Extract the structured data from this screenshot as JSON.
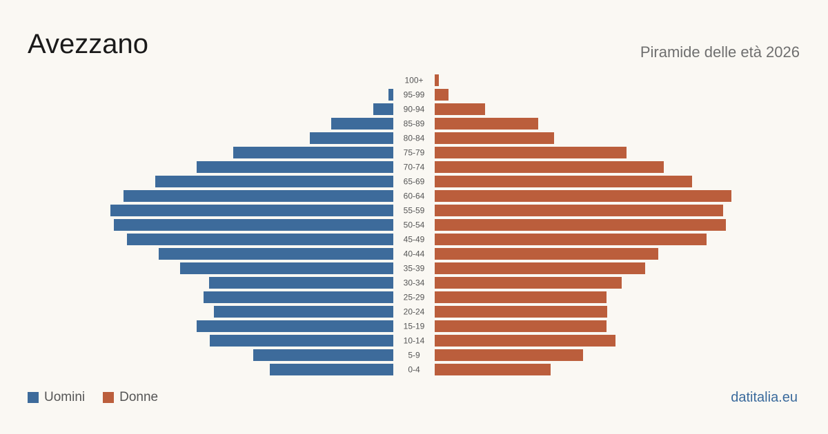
{
  "header": {
    "title": "Avezzano",
    "subtitle": "Piramide delle età 2026"
  },
  "legend": {
    "male_label": "Uomini",
    "female_label": "Donne"
  },
  "brand": "datitalia.eu",
  "colors": {
    "male": "#3d6b9b",
    "female": "#bb5e3c",
    "background": "#faf8f3"
  },
  "chart_data": {
    "type": "bar",
    "orientation": "horizontal-pyramid",
    "categories": [
      "100+",
      "95-99",
      "90-94",
      "85-89",
      "80-84",
      "75-79",
      "70-74",
      "65-69",
      "60-64",
      "55-59",
      "50-54",
      "45-49",
      "40-44",
      "35-39",
      "30-34",
      "25-29",
      "20-24",
      "15-19",
      "10-14",
      "5-9",
      "0-4"
    ],
    "series": [
      {
        "name": "Uomini",
        "values": [
          0,
          7,
          29,
          90,
          121,
          232,
          285,
          345,
          391,
          410,
          405,
          386,
          340,
          309,
          267,
          275,
          260,
          285,
          266,
          203,
          179
        ]
      },
      {
        "name": "Donne",
        "values": [
          6,
          20,
          73,
          150,
          173,
          278,
          332,
          373,
          430,
          418,
          422,
          394,
          324,
          305,
          271,
          249,
          250,
          249,
          262,
          215,
          168
        ]
      }
    ]
  }
}
